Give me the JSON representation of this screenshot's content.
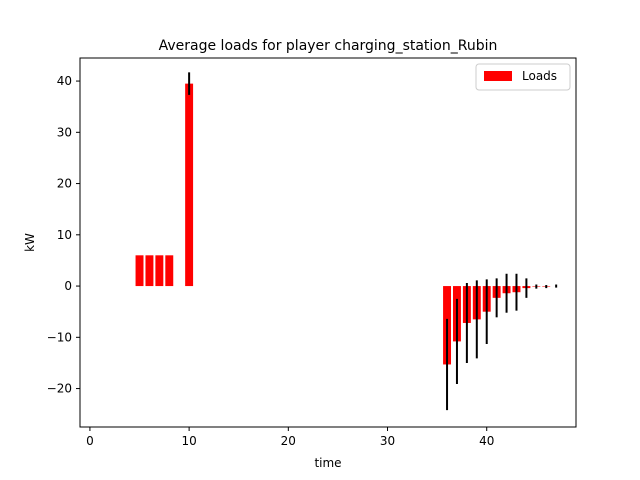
{
  "chart_data": {
    "type": "bar",
    "title": "Average loads for player charging_station_Rubin",
    "xlabel": "time",
    "ylabel": "kW",
    "xlim": [
      -1,
      49
    ],
    "ylim": [
      -27.5,
      44.5
    ],
    "xticks": [
      0,
      10,
      20,
      30,
      40
    ],
    "yticks": [
      -20,
      -10,
      0,
      10,
      20,
      30,
      40
    ],
    "grid": false,
    "legend": {
      "position": "top-right",
      "entries": [
        "Loads"
      ]
    },
    "series": [
      {
        "name": "Loads",
        "color": "#ff0000",
        "errorbar_color": "#000000",
        "bar_width": 0.8,
        "x": [
          5,
          6,
          7,
          8,
          10,
          36,
          37,
          38,
          39,
          40,
          41,
          42,
          43,
          44,
          45,
          46,
          47
        ],
        "values": [
          6.0,
          6.0,
          6.0,
          6.0,
          39.5,
          -15.3,
          -10.8,
          -7.2,
          -6.5,
          -5.0,
          -2.3,
          -1.4,
          -1.2,
          -0.4,
          -0.1,
          -0.1,
          0.0
        ],
        "errors": [
          0.0,
          0.0,
          0.0,
          0.0,
          2.2,
          8.9,
          8.3,
          7.8,
          7.6,
          6.3,
          3.8,
          3.8,
          3.6,
          1.9,
          0.4,
          0.3,
          0.3
        ]
      }
    ]
  }
}
